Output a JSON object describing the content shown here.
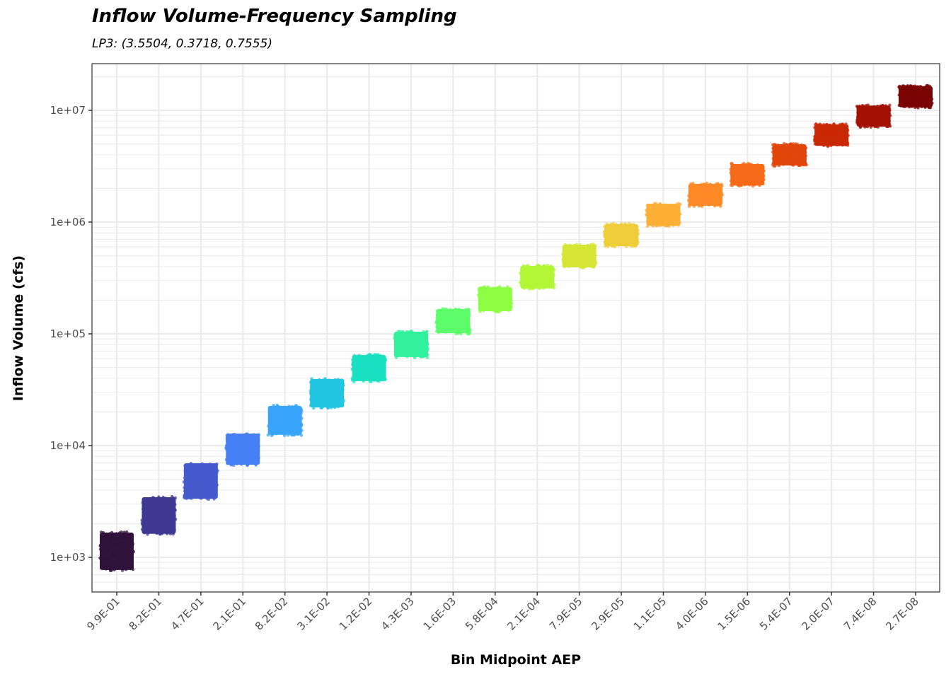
{
  "chart_data": {
    "type": "scatter",
    "title": "Inflow Volume-Frequency Sampling",
    "subtitle": "LP3: (3.5504, 0.3718, 0.7555)",
    "xlabel": "Bin Midpoint AEP",
    "ylabel": "Inflow Volume (cfs)",
    "yscale": "log10",
    "ylim": [
      600,
      24000000
    ],
    "grid": true,
    "legend": "none",
    "y_ticks": [
      {
        "value": 1000,
        "label": "1e+03"
      },
      {
        "value": 10000,
        "label": "1e+04"
      },
      {
        "value": 100000,
        "label": "1e+05"
      },
      {
        "value": 1000000,
        "label": "1e+06"
      },
      {
        "value": 10000000,
        "label": "1e+07"
      }
    ],
    "categories": [
      "9.9E-01",
      "8.2E-01",
      "4.7E-01",
      "2.1E-01",
      "8.2E-02",
      "3.1E-02",
      "1.2E-02",
      "4.3E-03",
      "1.6E-03",
      "5.8E-04",
      "2.1E-04",
      "7.9E-05",
      "2.9E-05",
      "1.1E-05",
      "4.0E-06",
      "1.5E-06",
      "5.4E-07",
      "2.0E-07",
      "7.4E-08",
      "2.7E-08"
    ],
    "series": [
      {
        "category": "9.9E-01",
        "y_min": 760,
        "y_max": 1690,
        "color": "#30123b"
      },
      {
        "category": "8.2E-01",
        "y_min": 1600,
        "y_max": 3500,
        "color": "#3e3891"
      },
      {
        "category": "4.7E-01",
        "y_min": 3300,
        "y_max": 7050,
        "color": "#455bcd"
      },
      {
        "category": "2.1E-01",
        "y_min": 6650,
        "y_max": 13000,
        "color": "#4680f6"
      },
      {
        "category": "8.2E-02",
        "y_min": 12300,
        "y_max": 23000,
        "color": "#38a4fb"
      },
      {
        "category": "3.1E-02",
        "y_min": 21600,
        "y_max": 39900,
        "color": "#22c5e2"
      },
      {
        "category": "1.2E-02",
        "y_min": 37200,
        "y_max": 65500,
        "color": "#1ae0c2"
      },
      {
        "category": "4.3E-03",
        "y_min": 61000,
        "y_max": 106000,
        "color": "#30f29c"
      },
      {
        "category": "1.6E-03",
        "y_min": 100000,
        "y_max": 169000,
        "color": "#5bfd6a"
      },
      {
        "category": "5.8E-04",
        "y_min": 157000,
        "y_max": 265000,
        "color": "#8dfe43"
      },
      {
        "category": "2.1E-04",
        "y_min": 251000,
        "y_max": 411000,
        "color": "#b2f635"
      },
      {
        "category": "7.9E-05",
        "y_min": 388000,
        "y_max": 637000,
        "color": "#d5e535"
      },
      {
        "category": "2.9E-05",
        "y_min": 600000,
        "y_max": 972000,
        "color": "#efcd3a"
      },
      {
        "category": "1.1E-05",
        "y_min": 916000,
        "y_max": 1480000,
        "color": "#fdaf35"
      },
      {
        "category": "4.0E-06",
        "y_min": 1380000,
        "y_max": 2230000,
        "color": "#fe8a27"
      },
      {
        "category": "1.5E-06",
        "y_min": 2100000,
        "y_max": 3350000,
        "color": "#f56918"
      },
      {
        "category": "5.4E-07",
        "y_min": 3170000,
        "y_max": 5040000,
        "color": "#e2460b"
      },
      {
        "category": "2.0E-07",
        "y_min": 4750000,
        "y_max": 7590000,
        "color": "#c82803"
      },
      {
        "category": "7.4E-08",
        "y_min": 7050000,
        "y_max": 11200000,
        "color": "#a31301"
      },
      {
        "category": "2.7E-08",
        "y_min": 10500000,
        "y_max": 16700000,
        "color": "#7a0403"
      }
    ]
  }
}
